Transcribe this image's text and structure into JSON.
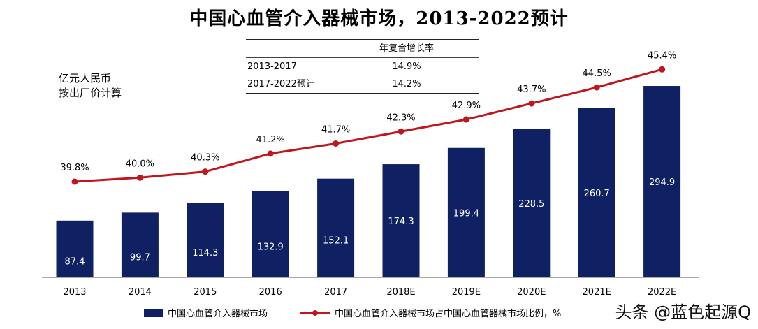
{
  "title": "中国心血管介入器械市场，2013-2022预计",
  "unit": [
    "亿元人民币",
    "按出厂价计算"
  ],
  "cagr_table": {
    "header": "年复合增长率",
    "rows": [
      {
        "period": "2013-2017",
        "rate": "14.9%"
      },
      {
        "period": "2017-2022预计",
        "rate": "14.2%"
      }
    ]
  },
  "watermark": "头条 @蓝色起源Q",
  "colors": {
    "bar": "#0f2163",
    "line": "#c0161d"
  },
  "chart_data": {
    "type": "bar",
    "title": "中国心血管介入器械市场，2013-2022预计",
    "categories": [
      "2013",
      "2014",
      "2015",
      "2016",
      "2017",
      "2018E",
      "2019E",
      "2020E",
      "2021E",
      "2022E"
    ],
    "series": [
      {
        "name": "中国心血管介入器械市场",
        "type": "bar",
        "values": [
          87.4,
          99.7,
          114.3,
          132.9,
          152.1,
          174.3,
          199.4,
          228.5,
          260.7,
          294.9
        ],
        "labels": [
          "87.4",
          "99.7",
          "114.3",
          "132.9",
          "152.1",
          "174.3",
          "199.4",
          "228.5",
          "260.7",
          "294.9"
        ]
      },
      {
        "name": "中国心血管介入器械市场占中国心血管器械市场比例，%",
        "type": "line",
        "values": [
          39.8,
          40.0,
          40.3,
          41.2,
          41.7,
          42.3,
          42.9,
          43.7,
          44.5,
          45.4
        ],
        "labels": [
          "39.8%",
          "40.0%",
          "40.3%",
          "41.2%",
          "41.7%",
          "42.3%",
          "42.9%",
          "43.7%",
          "44.5%",
          "45.4%"
        ]
      }
    ],
    "ylim": [
      0,
      310
    ],
    "y2lim": [
      34,
      46
    ],
    "legend": "bottom",
    "grid": false
  }
}
